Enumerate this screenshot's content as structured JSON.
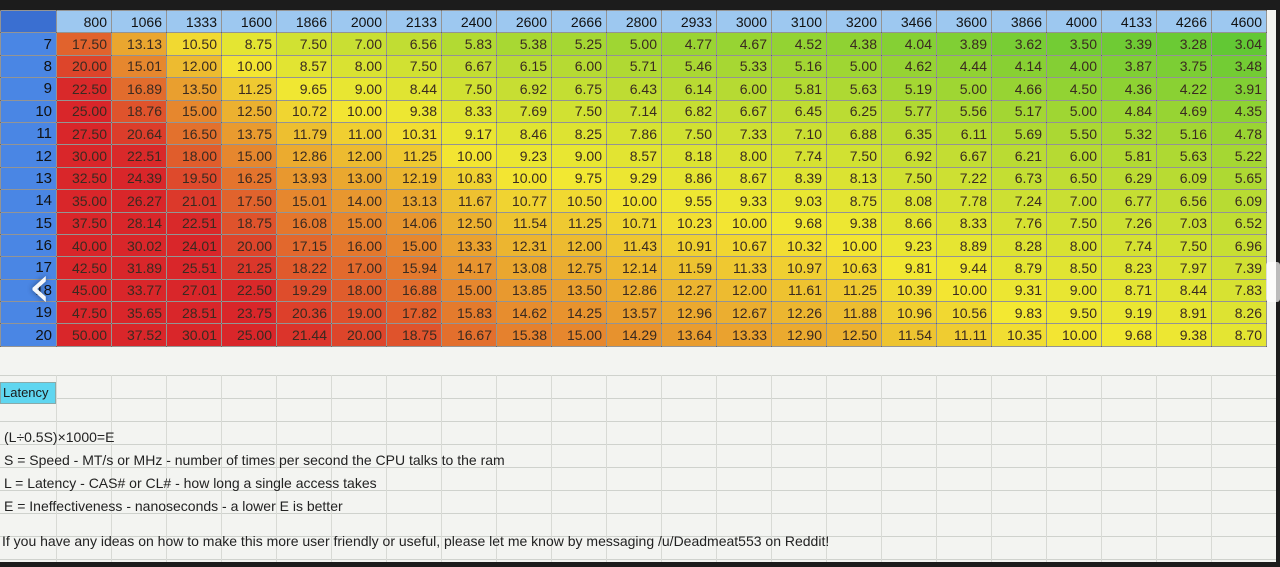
{
  "speeds": [
    "800",
    "1066",
    "1333",
    "1600",
    "1866",
    "2000",
    "2133",
    "2400",
    "2600",
    "2666",
    "2800",
    "2933",
    "3000",
    "3100",
    "3200",
    "3466",
    "3600",
    "3866",
    "4000",
    "4133",
    "4266",
    "4600"
  ],
  "rows": [
    {
      "latency": "7",
      "values": [
        "17.50",
        "13.13",
        "10.50",
        "8.75",
        "7.50",
        "7.00",
        "6.56",
        "5.83",
        "5.38",
        "5.25",
        "5.00",
        "4.77",
        "4.67",
        "4.52",
        "4.38",
        "4.04",
        "3.89",
        "3.62",
        "3.50",
        "3.39",
        "3.28",
        "3.04"
      ]
    },
    {
      "latency": "8",
      "values": [
        "20.00",
        "15.01",
        "12.00",
        "10.00",
        "8.57",
        "8.00",
        "7.50",
        "6.67",
        "6.15",
        "6.00",
        "5.71",
        "5.46",
        "5.33",
        "5.16",
        "5.00",
        "4.62",
        "4.44",
        "4.14",
        "4.00",
        "3.87",
        "3.75",
        "3.48"
      ]
    },
    {
      "latency": "9",
      "values": [
        "22.50",
        "16.89",
        "13.50",
        "11.25",
        "9.65",
        "9.00",
        "8.44",
        "7.50",
        "6.92",
        "6.75",
        "6.43",
        "6.14",
        "6.00",
        "5.81",
        "5.63",
        "5.19",
        "5.00",
        "4.66",
        "4.50",
        "4.36",
        "4.22",
        "3.91"
      ]
    },
    {
      "latency": "10",
      "values": [
        "25.00",
        "18.76",
        "15.00",
        "12.50",
        "10.72",
        "10.00",
        "9.38",
        "8.33",
        "7.69",
        "7.50",
        "7.14",
        "6.82",
        "6.67",
        "6.45",
        "6.25",
        "5.77",
        "5.56",
        "5.17",
        "5.00",
        "4.84",
        "4.69",
        "4.35"
      ]
    },
    {
      "latency": "11",
      "values": [
        "27.50",
        "20.64",
        "16.50",
        "13.75",
        "11.79",
        "11.00",
        "10.31",
        "9.17",
        "8.46",
        "8.25",
        "7.86",
        "7.50",
        "7.33",
        "7.10",
        "6.88",
        "6.35",
        "6.11",
        "5.69",
        "5.50",
        "5.32",
        "5.16",
        "4.78"
      ]
    },
    {
      "latency": "12",
      "values": [
        "30.00",
        "22.51",
        "18.00",
        "15.00",
        "12.86",
        "12.00",
        "11.25",
        "10.00",
        "9.23",
        "9.00",
        "8.57",
        "8.18",
        "8.00",
        "7.74",
        "7.50",
        "6.92",
        "6.67",
        "6.21",
        "6.00",
        "5.81",
        "5.63",
        "5.22"
      ]
    },
    {
      "latency": "13",
      "values": [
        "32.50",
        "24.39",
        "19.50",
        "16.25",
        "13.93",
        "13.00",
        "12.19",
        "10.83",
        "10.00",
        "9.75",
        "9.29",
        "8.86",
        "8.67",
        "8.39",
        "8.13",
        "7.50",
        "7.22",
        "6.73",
        "6.50",
        "6.29",
        "6.09",
        "5.65"
      ]
    },
    {
      "latency": "14",
      "values": [
        "35.00",
        "26.27",
        "21.01",
        "17.50",
        "15.01",
        "14.00",
        "13.13",
        "11.67",
        "10.77",
        "10.50",
        "10.00",
        "9.55",
        "9.33",
        "9.03",
        "8.75",
        "8.08",
        "7.78",
        "7.24",
        "7.00",
        "6.77",
        "6.56",
        "6.09"
      ]
    },
    {
      "latency": "15",
      "values": [
        "37.50",
        "28.14",
        "22.51",
        "18.75",
        "16.08",
        "15.00",
        "14.06",
        "12.50",
        "11.54",
        "11.25",
        "10.71",
        "10.23",
        "10.00",
        "9.68",
        "9.38",
        "8.66",
        "8.33",
        "7.76",
        "7.50",
        "7.26",
        "7.03",
        "6.52"
      ]
    },
    {
      "latency": "16",
      "values": [
        "40.00",
        "30.02",
        "24.01",
        "20.00",
        "17.15",
        "16.00",
        "15.00",
        "13.33",
        "12.31",
        "12.00",
        "11.43",
        "10.91",
        "10.67",
        "10.32",
        "10.00",
        "9.23",
        "8.89",
        "8.28",
        "8.00",
        "7.74",
        "7.50",
        "6.96"
      ]
    },
    {
      "latency": "17",
      "values": [
        "42.50",
        "31.89",
        "25.51",
        "21.25",
        "18.22",
        "17.00",
        "15.94",
        "14.17",
        "13.08",
        "12.75",
        "12.14",
        "11.59",
        "11.33",
        "10.97",
        "10.63",
        "9.81",
        "9.44",
        "8.79",
        "8.50",
        "8.23",
        "7.97",
        "7.39"
      ]
    },
    {
      "latency": "18",
      "values": [
        "45.00",
        "33.77",
        "27.01",
        "22.50",
        "19.29",
        "18.00",
        "16.88",
        "15.00",
        "13.85",
        "13.50",
        "12.86",
        "12.27",
        "12.00",
        "11.61",
        "11.25",
        "10.39",
        "10.00",
        "9.31",
        "9.00",
        "8.71",
        "8.44",
        "7.83"
      ]
    },
    {
      "latency": "19",
      "values": [
        "47.50",
        "35.65",
        "28.51",
        "23.75",
        "20.36",
        "19.00",
        "17.82",
        "15.83",
        "14.62",
        "14.25",
        "13.57",
        "12.96",
        "12.67",
        "12.26",
        "11.88",
        "10.96",
        "10.56",
        "9.83",
        "9.50",
        "9.19",
        "8.91",
        "8.26"
      ]
    },
    {
      "latency": "20",
      "values": [
        "50.00",
        "37.52",
        "30.01",
        "25.00",
        "21.44",
        "20.00",
        "18.75",
        "16.67",
        "15.38",
        "15.00",
        "14.29",
        "13.64",
        "13.33",
        "12.90",
        "12.50",
        "11.54",
        "11.11",
        "10.35",
        "10.00",
        "9.68",
        "9.38",
        "8.70"
      ]
    }
  ],
  "latency_label": "Latency",
  "notes": {
    "formula": "(L÷0.5S)×1000=E",
    "speed": "S = Speed - MT/s or MHz - number of times per second the CPU talks to the ram",
    "latency": "L = Latency - CAS# or CL# - how long a single access takes",
    "ineffectiveness": "E = Ineffectiveness - nanoseconds - a lower E is better",
    "footer": "If you have any ideas on how to make this more user friendly or useful, please let me know by messaging /u/Deadmeat553 on Reddit!"
  },
  "colors": {
    "worst": "#d9262a",
    "mid": "#f3e832",
    "best": "#62c834",
    "row_header": "#4a86e4",
    "column_header": "#9dc8f0",
    "latency_cell": "#5fd6f0"
  },
  "icons": {
    "prev": "chevron-left-icon",
    "next": "chevron-right-icon"
  }
}
